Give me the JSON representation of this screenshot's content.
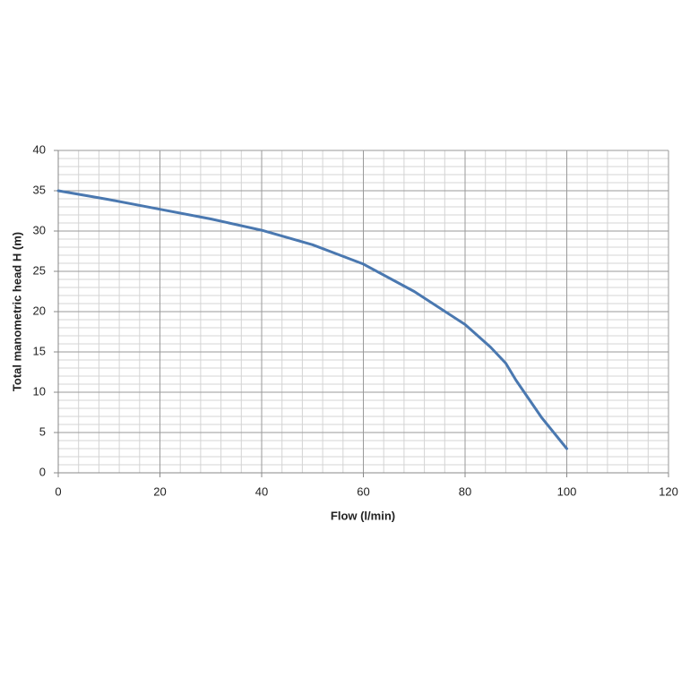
{
  "chart_data": {
    "type": "line",
    "x_label": "Flow (l/min)",
    "y_label": "Total manometric head H (m)",
    "x": [
      0,
      10,
      20,
      30,
      40,
      50,
      60,
      70,
      80,
      85,
      88,
      90,
      95,
      100
    ],
    "series": [
      {
        "name": "H",
        "color": "#4a78b0",
        "values": [
          35,
          33.9,
          32.7,
          31.5,
          30.1,
          28.3,
          25.9,
          22.5,
          18.4,
          15.6,
          13.6,
          11.5,
          6.9,
          3
        ]
      }
    ],
    "xlim": [
      0,
      120
    ],
    "xticks": [
      0,
      20,
      40,
      60,
      80,
      100,
      120
    ],
    "ylim": [
      0,
      40
    ],
    "yticks": [
      0,
      5,
      10,
      15,
      20,
      25,
      30,
      35,
      40
    ],
    "grid": true,
    "minor_grid": {
      "x_step": 4,
      "y_step": 1
    }
  }
}
